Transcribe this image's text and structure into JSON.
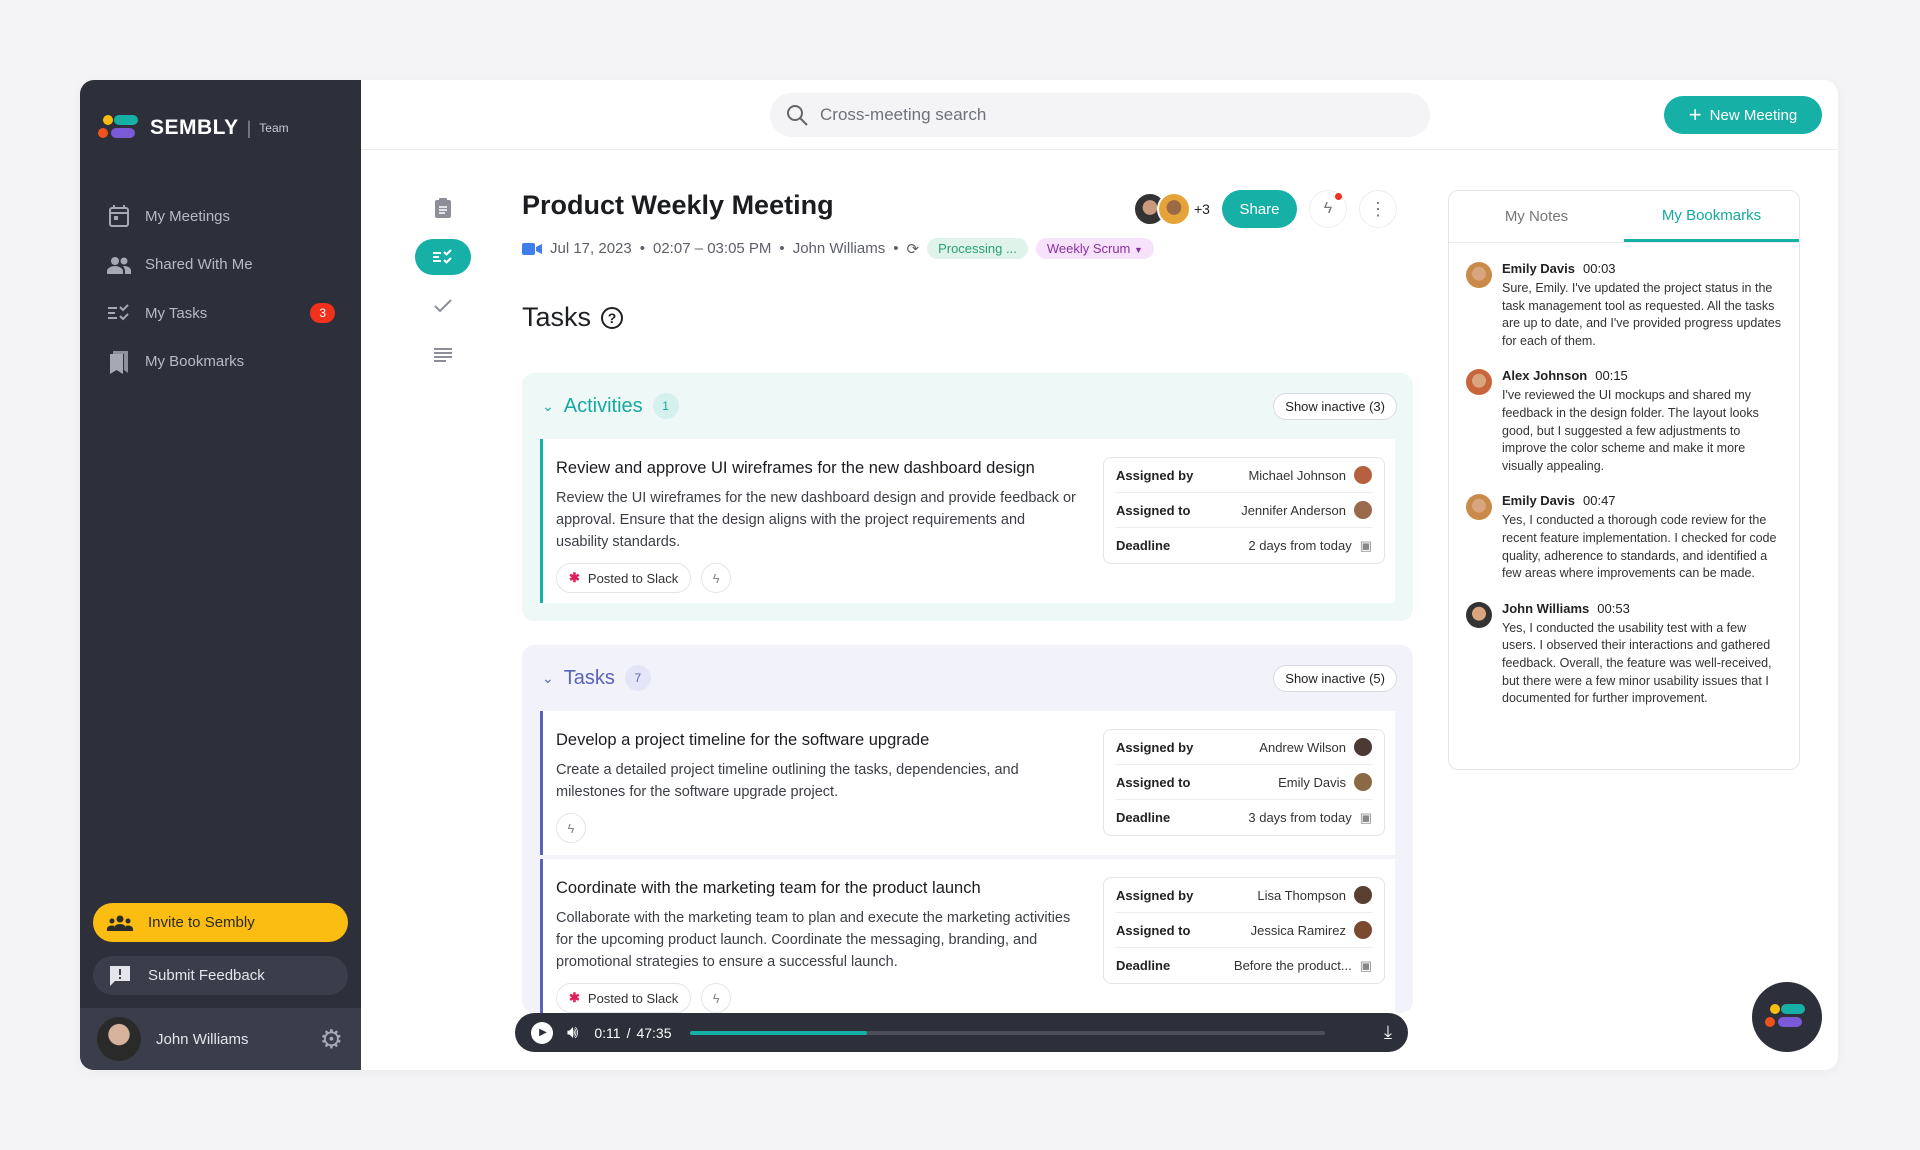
{
  "brand": {
    "name": "SEMBLY",
    "plan": "Team"
  },
  "sidebar": {
    "items": [
      {
        "label": "My Meetings",
        "icon": "calendar-icon"
      },
      {
        "label": "Shared With Me",
        "icon": "people-icon"
      },
      {
        "label": "My Tasks",
        "icon": "tasks-icon",
        "badge": "3"
      },
      {
        "label": "My Bookmarks",
        "icon": "bookmark-icon"
      }
    ],
    "invite_label": "Invite to Sembly",
    "feedback_label": "Submit Feedback",
    "user_name": "John Williams"
  },
  "topbar": {
    "search_placeholder": "Cross-meeting search",
    "new_meeting_label": "New Meeting"
  },
  "meeting": {
    "title": "Product Weekly Meeting",
    "date": "Jul 17, 2023",
    "time": "02:07 – 03:05 PM",
    "owner": "John Williams",
    "status": "Processing ...",
    "tag": "Weekly Scrum",
    "participants_extra": "+3",
    "share_label": "Share"
  },
  "tasks_heading": "Tasks",
  "activities": {
    "title": "Activities",
    "count": "1",
    "show_inactive": "Show inactive (3)",
    "items": [
      {
        "title": "Review and approve UI wireframes for the new dashboard design",
        "desc": "Review the UI wireframes for the new dashboard design and provide feedback or approval. Ensure that the design aligns with the project requirements and usability standards.",
        "chip": "Posted to Slack",
        "assigned_by": "Michael Johnson",
        "assigned_to": "Jennifer Anderson",
        "deadline": "2 days from today"
      }
    ]
  },
  "tasks": {
    "title": "Tasks",
    "count": "7",
    "show_inactive": "Show inactive (5)",
    "items": [
      {
        "title": "Develop a project timeline for the software upgrade",
        "desc": "Create a detailed project timeline outlining the tasks, dependencies, and milestones for the software upgrade project.",
        "assigned_by": "Andrew Wilson",
        "assigned_to": "Emily Davis",
        "deadline": "3 days from today"
      },
      {
        "title": "Coordinate with the marketing team for the product launch",
        "desc": "Collaborate with the marketing team to plan and execute the marketing activities for the upcoming product launch. Coordinate the messaging, branding, and promotional strategies to ensure a successful launch.",
        "chip": "Posted to Slack",
        "assigned_by": "Lisa Thompson",
        "assigned_to": "Jessica Ramirez",
        "deadline": "Before the product..."
      }
    ]
  },
  "labels": {
    "assigned_by": "Assigned by",
    "assigned_to": "Assigned to",
    "deadline": "Deadline"
  },
  "player": {
    "current": "0:11",
    "total": "47:35",
    "sep": "/",
    "progress": 0.28
  },
  "panel": {
    "tabs": [
      "My Notes",
      "My Bookmarks"
    ],
    "active_tab": "My Bookmarks",
    "bookmarks": [
      {
        "name": "Emily Davis",
        "time": "00:03",
        "text": "Sure, Emily. I've updated the project status in the task management tool as requested. All the tasks are up to date, and I've provided progress updates for each of them."
      },
      {
        "name": "Alex Johnson",
        "time": "00:15",
        "text": "I've reviewed the UI mockups and shared my feedback in the design folder. The layout looks good, but I suggested a few adjustments to improve the color scheme and make it more visually appealing."
      },
      {
        "name": "Emily Davis",
        "time": "00:47",
        "text": "Yes, I conducted a thorough code review for the recent feature implementation. I checked for code quality, adherence to standards, and identified a few areas where improvements can be made."
      },
      {
        "name": "John Williams",
        "time": "00:53",
        "text": "Yes, I conducted the usability test with a few users. I observed their interactions and gathered feedback. Overall, the feature was well-received, but there were a few minor usability issues that I documented for further improvement."
      }
    ]
  },
  "colors": {
    "accent": "#16b0a6",
    "sidebar": "#2d2f3a",
    "invite": "#fbbd12",
    "badge": "#f0321c",
    "activities_bg": "#eef8f7",
    "tasks_bg": "#f2f3fa",
    "tasks_accent": "#5b63b7"
  }
}
